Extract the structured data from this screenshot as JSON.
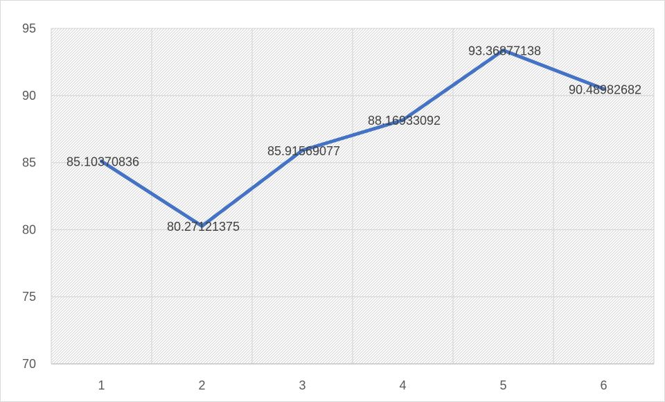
{
  "chart_data": {
    "type": "line",
    "title": "",
    "xlabel": "",
    "ylabel": "",
    "categories": [
      "1",
      "2",
      "3",
      "4",
      "5",
      "6"
    ],
    "series": [
      {
        "values": [
          85.10370836,
          80.27121375,
          85.91569077,
          88.16933092,
          93.36877138,
          90.48982682
        ],
        "labels": [
          "85.10370836",
          "80.27121375",
          "85.91569077",
          "88.16933092",
          "93.36877138",
          "90.48982682"
        ],
        "color": "#4472c4"
      }
    ],
    "ylim": [
      70,
      95
    ],
    "yticks": [
      "70",
      "75",
      "80",
      "85",
      "90",
      "95"
    ],
    "grid": true,
    "legend": "none",
    "plot_background": "hatched"
  }
}
